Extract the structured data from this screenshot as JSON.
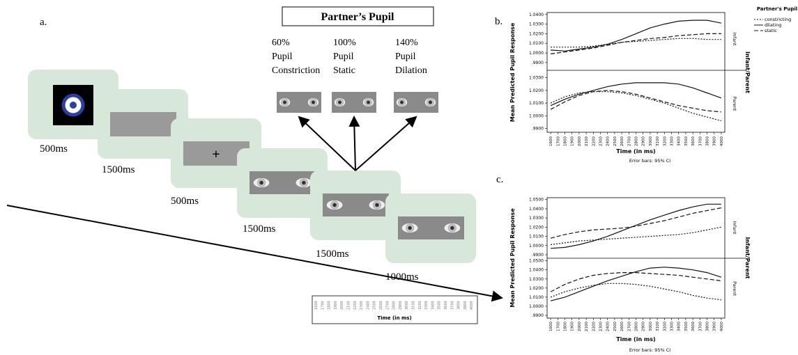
{
  "panel_a": {
    "label": "a.",
    "partner_box": "Partner’s Pupil",
    "conditions": [
      [
        "60%",
        "Pupil",
        "Constriction"
      ],
      [
        "100%",
        "Pupil",
        "Static"
      ],
      [
        "140%",
        "Pupil",
        "Dilation"
      ]
    ],
    "durations": [
      "500ms",
      "1500ms",
      "500ms",
      "1500ms",
      "1500ms",
      "1000ms"
    ],
    "timeline": {
      "ticks": [
        1600,
        1700,
        1800,
        1900,
        2000,
        2100,
        2200,
        2300,
        2400,
        2500,
        2600,
        2700,
        2800,
        2900,
        3000,
        3100,
        3200,
        3300,
        3400,
        3500,
        3600,
        3700,
        3800,
        3900,
        4000
      ],
      "label": "Time (in ms)"
    }
  },
  "chart_data": [
    {
      "type": "line",
      "label": "b.",
      "x_label": "Time (in ms)",
      "y_label": "Mean Predicted Pupil Response",
      "facet_label": "Infant/Parent",
      "note": "Error bars: 95% CI",
      "legend_title": "Partner's Pupil",
      "series": [
        {
          "name": "constricting",
          "dash": "2,2"
        },
        {
          "name": "dilating",
          "dash": "none"
        },
        {
          "name": "static",
          "dash": "6,3"
        }
      ],
      "x": [
        1600,
        1800,
        2000,
        2200,
        2400,
        2600,
        2800,
        3000,
        3200,
        3400,
        3600,
        3800,
        4000
      ],
      "xlim": [
        1550,
        4050
      ],
      "xticks": [
        1600,
        1700,
        1800,
        1900,
        2000,
        2100,
        2200,
        2300,
        2400,
        2500,
        2600,
        2700,
        2800,
        2900,
        3000,
        3100,
        3200,
        3300,
        3400,
        3500,
        3600,
        3700,
        3800,
        3900,
        4000
      ],
      "panels": [
        {
          "facet": "Infant",
          "ylim": [
            0.987,
            1.042
          ],
          "yticks": [
            {
              "value": 0.99,
              "label": ".9900"
            },
            {
              "value": 1.0,
              "label": "1.0000"
            },
            {
              "value": 1.01,
              "label": "1.0100"
            },
            {
              "value": 1.02,
              "label": "1.0200"
            },
            {
              "value": 1.03,
              "label": "1.0300"
            },
            {
              "value": 1.04,
              "label": "1.0400"
            }
          ],
          "values": [
            [
              1.006,
              1.006,
              1.006,
              1.007,
              1.009,
              1.011,
              1.012,
              1.013,
              1.014,
              1.015,
              1.015,
              1.014,
              1.014
            ],
            [
              1.003,
              1.002,
              1.004,
              1.006,
              1.009,
              1.014,
              1.02,
              1.026,
              1.03,
              1.033,
              1.034,
              1.034,
              1.031
            ],
            [
              0.999,
              1.001,
              1.003,
              1.005,
              1.008,
              1.011,
              1.013,
              1.015,
              1.016,
              1.018,
              1.019,
              1.02,
              1.02
            ]
          ]
        },
        {
          "facet": "Parent",
          "ylim": [
            0.987,
            1.032
          ],
          "yticks": [
            {
              "value": 0.99,
              "label": ".9900"
            },
            {
              "value": 1.0,
              "label": "1.0000"
            },
            {
              "value": 1.01,
              "label": "1.0100"
            },
            {
              "value": 1.02,
              "label": "1.0200"
            },
            {
              "value": 1.03,
              "label": "1.0300"
            }
          ],
          "values": [
            [
              1.01,
              1.015,
              1.018,
              1.019,
              1.019,
              1.018,
              1.016,
              1.013,
              1.01,
              1.006,
              1.002,
              0.999,
              0.996
            ],
            [
              1.008,
              1.013,
              1.017,
              1.02,
              1.023,
              1.025,
              1.026,
              1.026,
              1.026,
              1.025,
              1.022,
              1.018,
              1.014
            ],
            [
              1.005,
              1.011,
              1.016,
              1.019,
              1.02,
              1.019,
              1.017,
              1.014,
              1.011,
              1.008,
              1.006,
              1.004,
              1.003
            ]
          ]
        }
      ]
    },
    {
      "type": "line",
      "label": "c.",
      "x_label": "Time (in ms)",
      "y_label": "Mean Predicted Pupil Response",
      "facet_label": "Infant/Parent",
      "note": "Error bars: 95% CI",
      "series": [
        {
          "dash": "2,2"
        },
        {
          "dash": "none"
        },
        {
          "dash": "6,3"
        }
      ],
      "x": [
        1600,
        1800,
        2000,
        2200,
        2400,
        2600,
        2800,
        3000,
        3200,
        3400,
        3600,
        3800,
        4000
      ],
      "xlim": [
        1550,
        4050
      ],
      "xticks": [
        1600,
        1700,
        1800,
        1900,
        2000,
        2100,
        2200,
        2300,
        2400,
        2500,
        2600,
        2700,
        2800,
        2900,
        3000,
        3100,
        3200,
        3300,
        3400,
        3500,
        3600,
        3700,
        3800,
        3900,
        4000
      ],
      "panels": [
        {
          "facet": "Infant",
          "ylim": [
            0.987,
            1.052
          ],
          "yticks": [
            {
              "value": 0.99,
              "label": ".9900"
            },
            {
              "value": 1.0,
              "label": "1.0000"
            },
            {
              "value": 1.01,
              "label": "1.0100"
            },
            {
              "value": 1.02,
              "label": "1.0200"
            },
            {
              "value": 1.03,
              "label": "1.0300"
            },
            {
              "value": 1.04,
              "label": "1.0400"
            },
            {
              "value": 1.05,
              "label": "1.0500"
            }
          ],
          "values": [
            [
              1.001,
              1.003,
              1.005,
              1.006,
              1.007,
              1.008,
              1.009,
              1.01,
              1.011,
              1.012,
              1.014,
              1.017,
              1.02
            ],
            [
              0.997,
              0.998,
              1.001,
              1.005,
              1.01,
              1.016,
              1.022,
              1.028,
              1.033,
              1.038,
              1.042,
              1.045,
              1.045
            ],
            [
              1.008,
              1.012,
              1.015,
              1.017,
              1.018,
              1.019,
              1.021,
              1.024,
              1.027,
              1.031,
              1.035,
              1.038,
              1.041
            ]
          ]
        },
        {
          "facet": "Parent",
          "ylim": [
            0.987,
            1.052
          ],
          "yticks": [
            {
              "value": 0.99,
              "label": ".9900"
            },
            {
              "value": 1.0,
              "label": "1.0000"
            },
            {
              "value": 1.01,
              "label": "1.0100"
            },
            {
              "value": 1.02,
              "label": "1.0200"
            },
            {
              "value": 1.03,
              "label": "1.0300"
            },
            {
              "value": 1.04,
              "label": "1.0400"
            },
            {
              "value": 1.05,
              "label": "1.0500"
            }
          ],
          "values": [
            [
              1.01,
              1.016,
              1.02,
              1.023,
              1.025,
              1.025,
              1.024,
              1.022,
              1.019,
              1.016,
              1.012,
              1.009,
              1.007
            ],
            [
              1.006,
              1.01,
              1.016,
              1.022,
              1.028,
              1.033,
              1.038,
              1.042,
              1.043,
              1.042,
              1.04,
              1.037,
              1.032
            ],
            [
              1.016,
              1.024,
              1.03,
              1.034,
              1.036,
              1.037,
              1.037,
              1.036,
              1.035,
              1.034,
              1.032,
              1.03,
              1.028
            ]
          ]
        }
      ]
    }
  ]
}
